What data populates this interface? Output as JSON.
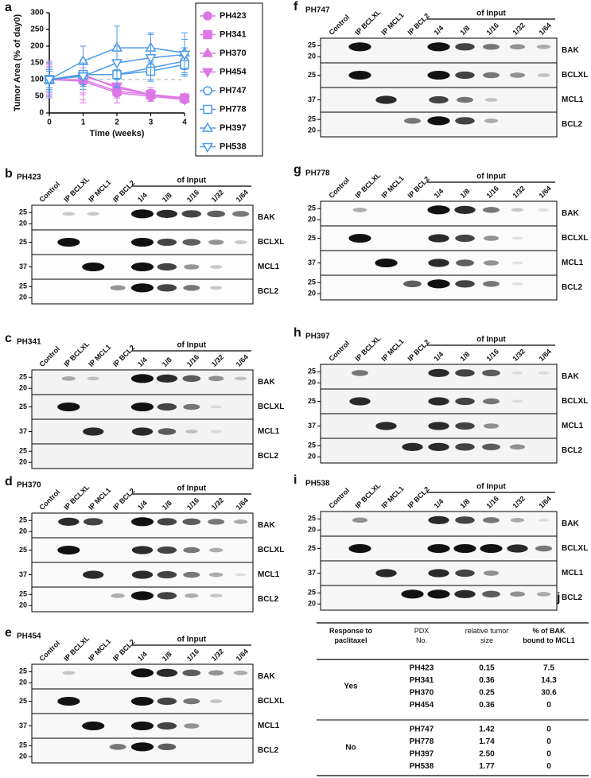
{
  "chart_data": {
    "type": "line",
    "panel": "a",
    "y_label": "Tumor Area (% of day0)",
    "x_label": "Time (weeks)",
    "x": [
      0,
      1,
      2,
      3,
      4
    ],
    "xlim": [
      0,
      4
    ],
    "xticks": [
      0,
      1,
      2,
      3,
      4
    ],
    "ylim": [
      0,
      300
    ],
    "yticks": [
      0,
      50,
      100,
      150,
      200,
      250,
      300
    ],
    "reference_line": 100,
    "series": [
      {
        "name": "PH423",
        "color": "#dd77e6",
        "marker": "circle",
        "filled": true,
        "values": [
          100,
          95,
          60,
          50,
          40
        ],
        "errors": [
          50,
          40,
          30,
          15,
          10
        ]
      },
      {
        "name": "PH341",
        "color": "#dd77e6",
        "marker": "square",
        "filled": true,
        "values": [
          100,
          100,
          65,
          55,
          45
        ],
        "errors": [
          45,
          60,
          35,
          20,
          12
        ]
      },
      {
        "name": "PH370",
        "color": "#dd77e6",
        "marker": "triangle-up",
        "filled": true,
        "values": [
          100,
          115,
          75,
          55,
          45
        ],
        "errors": [
          55,
          85,
          30,
          20,
          12
        ]
      },
      {
        "name": "PH454",
        "color": "#dd77e6",
        "marker": "triangle-down",
        "filled": true,
        "values": [
          100,
          110,
          80,
          55,
          40
        ],
        "errors": [
          40,
          50,
          30,
          15,
          10
        ]
      },
      {
        "name": "PH747",
        "color": "#4a9be8",
        "marker": "circle",
        "filled": false,
        "values": [
          100,
          115,
          115,
          135,
          155
        ],
        "errors": [
          30,
          35,
          40,
          35,
          40
        ]
      },
      {
        "name": "PH778",
        "color": "#4a9be8",
        "marker": "square",
        "filled": false,
        "values": [
          100,
          115,
          115,
          125,
          145
        ],
        "errors": [
          25,
          30,
          35,
          30,
          35
        ]
      },
      {
        "name": "PH397",
        "color": "#4a9be8",
        "marker": "triangle-up",
        "filled": false,
        "values": [
          100,
          155,
          195,
          195,
          180
        ],
        "errors": [
          50,
          45,
          65,
          45,
          60
        ]
      },
      {
        "name": "PH538",
        "color": "#4a9be8",
        "marker": "triangle-down",
        "filled": false,
        "values": [
          100,
          110,
          150,
          165,
          175
        ],
        "errors": [
          35,
          40,
          50,
          70,
          45
        ]
      }
    ]
  },
  "blot_columns": [
    "Control",
    "IP BCLXL",
    "IP MCL1",
    "IP BCL2",
    "1/4",
    "1/8",
    "1/16",
    "1/32",
    "1/64"
  ],
  "input_label": "of Input",
  "blot_rows": [
    {
      "label": "BAK",
      "markers": [
        "25",
        "20"
      ]
    },
    {
      "label": "BCLXL",
      "markers": [
        "25"
      ]
    },
    {
      "label": "MCL1",
      "markers": [
        "37"
      ]
    },
    {
      "label": "BCL2",
      "markers": [
        "25",
        "20"
      ]
    }
  ],
  "blot_panels": [
    {
      "letter": "b",
      "name": "PH423",
      "color": "#e020e0"
    },
    {
      "letter": "c",
      "name": "PH341",
      "color": "#e020e0"
    },
    {
      "letter": "d",
      "name": "PH370",
      "color": "#e020e0"
    },
    {
      "letter": "e",
      "name": "PH454",
      "color": "#e020e0"
    },
    {
      "letter": "f",
      "name": "PH747",
      "color": "#1e7fd8"
    },
    {
      "letter": "g",
      "name": "PH778",
      "color": "#1e7fd8"
    },
    {
      "letter": "h",
      "name": "PH397",
      "color": "#1e7fd8"
    },
    {
      "letter": "i",
      "name": "PH538",
      "color": "#1e7fd8"
    }
  ],
  "table": {
    "letter": "j",
    "headers": [
      "Response to paclitaxel",
      "PDX No.",
      "relative tumor size",
      "% of BAK bound to MCL1"
    ],
    "groups": [
      {
        "response": "Yes",
        "color": "#e020e0",
        "rows": [
          [
            "PH423",
            "0.15",
            "7.5"
          ],
          [
            "PH341",
            "0.36",
            "14.3"
          ],
          [
            "PH370",
            "0.25",
            "30.6"
          ],
          [
            "PH454",
            "0.36",
            "0"
          ]
        ]
      },
      {
        "response": "No",
        "color": "#1e7fd8",
        "rows": [
          [
            "PH747",
            "1.42",
            "0"
          ],
          [
            "PH778",
            "1.74",
            "0"
          ],
          [
            "PH397",
            "2.50",
            "0"
          ],
          [
            "PH538",
            "1.77",
            "0"
          ]
        ]
      }
    ]
  }
}
